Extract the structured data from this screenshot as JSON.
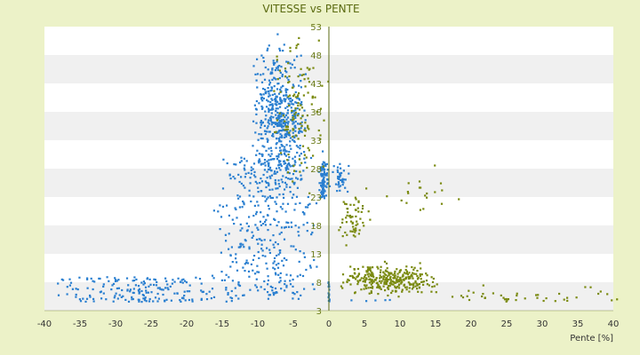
{
  "chart_data": {
    "type": "scatter",
    "title": "VITESSE vs PENTE",
    "xlabel": "Pente [%]",
    "ylabel": "",
    "xlim": [
      -40,
      40
    ],
    "ylim": [
      3,
      53
    ],
    "x_ticks": [
      "-40",
      "-35",
      "-30",
      "-25",
      "-20",
      "-15",
      "-10",
      "-5",
      "0",
      "5",
      "10",
      "15",
      "20",
      "25",
      "30",
      "35",
      "40"
    ],
    "y_ticks": [
      "3",
      "8",
      "13",
      "18",
      "23",
      "28",
      "33",
      "38",
      "43",
      "48",
      "53"
    ],
    "y_axis_crosses_x": 0,
    "grid": "horizontal alternating bands",
    "legend": "none",
    "colors": {
      "background": "#ecf2c8",
      "plot_band_light": "#ffffff",
      "plot_band_dark": "#f0f0f0",
      "series_blue": "#2a7fd0",
      "series_olive": "#7a8a10",
      "axis": "#5a6a10"
    },
    "series": [
      {
        "color": "#2a7fd0",
        "clusters": [
          {
            "x": [
              -11,
              -3
            ],
            "y": [
              20,
              53
            ],
            "n": 520
          },
          {
            "x": [
              -17,
              -1
            ],
            "y": [
              5,
              30
            ],
            "n": 380
          },
          {
            "x": [
              -40,
              -10
            ],
            "y": [
              1,
              9
            ],
            "n": 330
          },
          {
            "x": [
              -1.5,
              0
            ],
            "y": [
              20,
              32
            ],
            "n": 90
          },
          {
            "x": [
              0,
              3
            ],
            "y": [
              22,
              30
            ],
            "n": 40
          },
          {
            "x": [
              0,
              15
            ],
            "y": [
              1,
              5
            ],
            "n": 60
          },
          {
            "x": [
              -0.1,
              0.1
            ],
            "y": [
              1,
              8
            ],
            "n": 25
          }
        ]
      },
      {
        "color": "#7a8a10",
        "clusters": [
          {
            "x": [
              -8,
              0
            ],
            "y": [
              22,
              54
            ],
            "n": 120
          },
          {
            "x": [
              1,
              16
            ],
            "y": [
              5,
              12
            ],
            "n": 320
          },
          {
            "x": [
              12,
              43
            ],
            "y": [
              1,
              8
            ],
            "n": 90
          },
          {
            "x": [
              1,
              6
            ],
            "y": [
              12,
              26
            ],
            "n": 60
          },
          {
            "x": [
              5,
              20
            ],
            "y": [
              18,
              30
            ],
            "n": 20
          }
        ]
      }
    ]
  }
}
